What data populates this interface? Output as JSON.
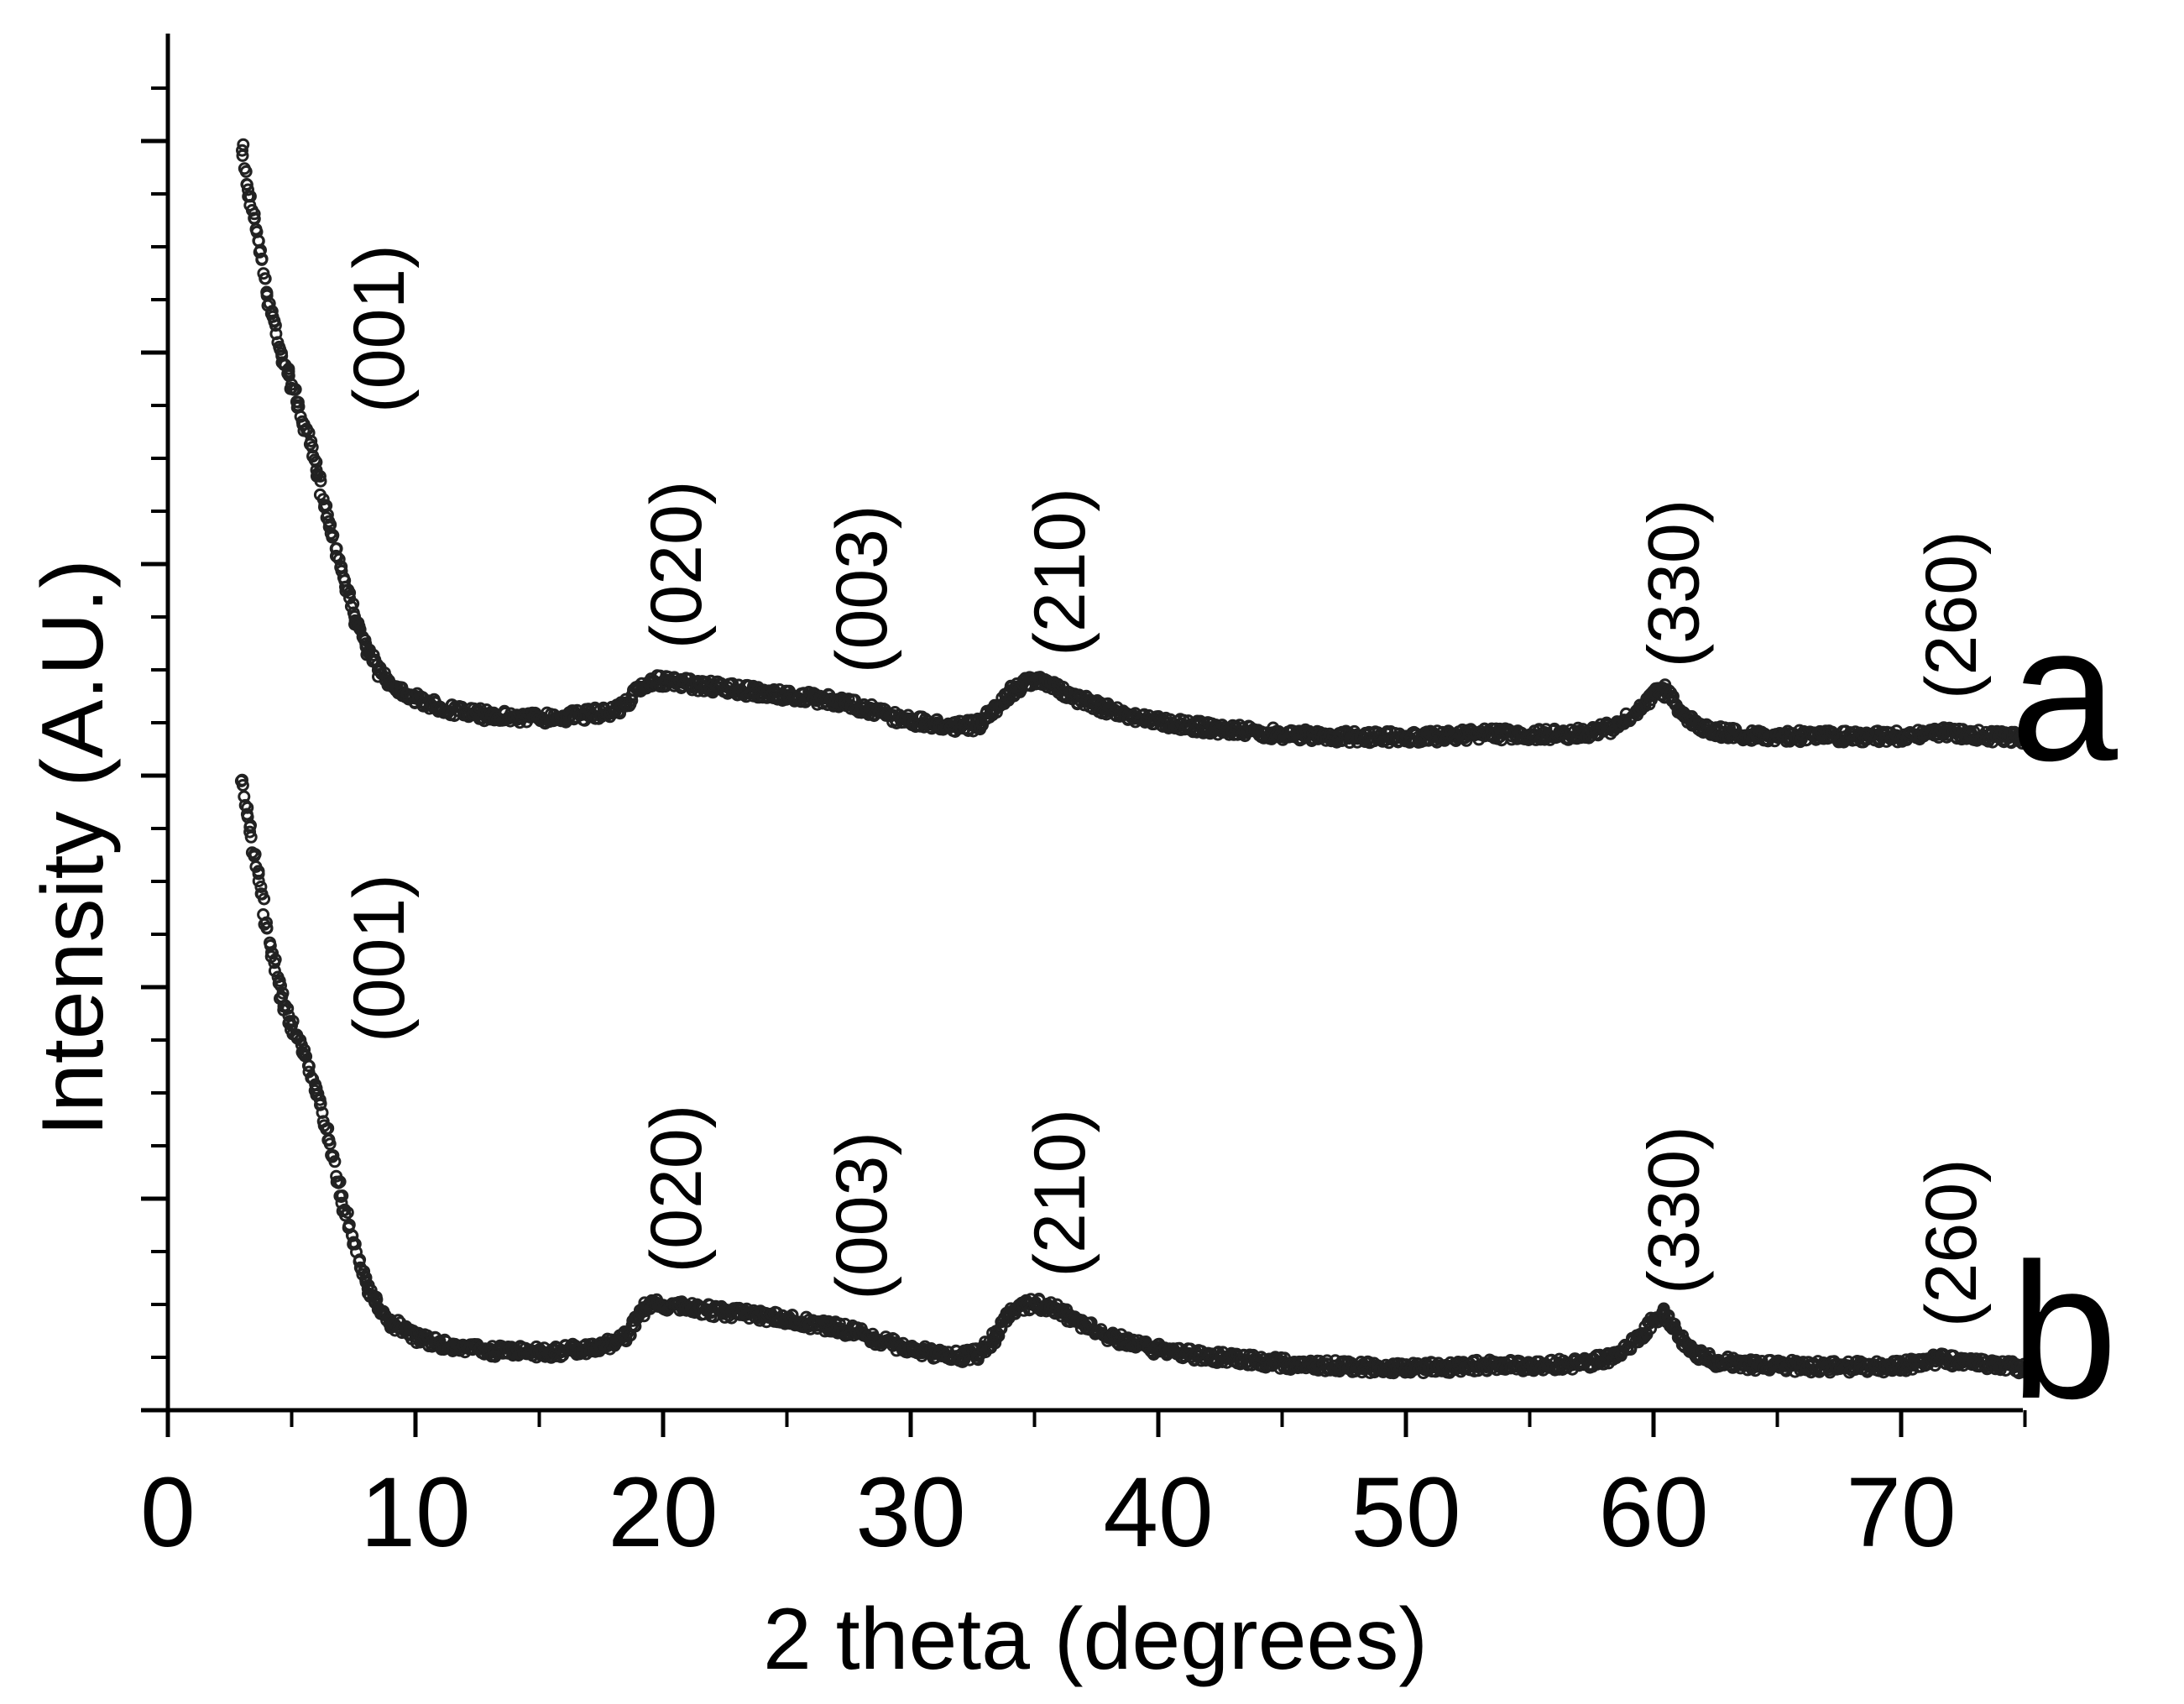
{
  "chart_data": {
    "type": "scatter",
    "xlabel": "2 theta (degrees)",
    "ylabel": "Intensity (A.U.)",
    "xlim": [
      0,
      75
    ],
    "x_ticks": [
      "0",
      "10",
      "20",
      "30",
      "40",
      "50",
      "60",
      "70"
    ],
    "x_tick_values": [
      0,
      10,
      20,
      30,
      40,
      50,
      60,
      70
    ],
    "y_tick_labels_shown": false,
    "grid": false,
    "marker": "open-circle",
    "series": [
      {
        "name": "a",
        "x": [
          3.0,
          3.2,
          3.5,
          3.8,
          4.0,
          4.3,
          4.6,
          5.0,
          5.5,
          6.0,
          6.5,
          7.0,
          7.5,
          8.0,
          8.5,
          9.0,
          10,
          11,
          12,
          13,
          14,
          15,
          16,
          17,
          18,
          18.5,
          19.0,
          19.5,
          20,
          21,
          22,
          23,
          24,
          25,
          26,
          27,
          28,
          29,
          30,
          31,
          32,
          32.8,
          33.4,
          34.0,
          34.5,
          35.0,
          35.5,
          36,
          37,
          38,
          39,
          40,
          42,
          44,
          46,
          48,
          50,
          52,
          53,
          55,
          57,
          58.5,
          59.5,
          60.0,
          60.4,
          60.8,
          61.5,
          62.5,
          64,
          66,
          68,
          70,
          71.5,
          72.5,
          74,
          75
        ],
        "y": [
          10.6,
          10.0,
          9.4,
          8.7,
          8.1,
          7.6,
          7.0,
          6.5,
          5.8,
          5.0,
          4.1,
          3.3,
          2.5,
          1.9,
          1.5,
          1.25,
          1.0,
          0.85,
          0.75,
          0.7,
          0.67,
          0.66,
          0.68,
          0.72,
          0.78,
          0.9,
          1.15,
          1.3,
          1.3,
          1.25,
          1.2,
          1.15,
          1.1,
          1.05,
          1.0,
          0.95,
          0.85,
          0.72,
          0.6,
          0.55,
          0.5,
          0.55,
          0.8,
          1.1,
          1.25,
          1.3,
          1.25,
          1.15,
          0.95,
          0.8,
          0.68,
          0.6,
          0.48,
          0.4,
          0.35,
          0.32,
          0.32,
          0.34,
          0.38,
          0.36,
          0.38,
          0.5,
          0.8,
          1.05,
          1.15,
          0.95,
          0.6,
          0.42,
          0.35,
          0.34,
          0.33,
          0.33,
          0.42,
          0.37,
          0.32,
          0.3
        ]
      },
      {
        "name": "b",
        "x": [
          3.0,
          3.2,
          3.5,
          3.8,
          4.0,
          4.3,
          4.6,
          5.0,
          5.5,
          6.0,
          6.5,
          7.0,
          7.5,
          8.0,
          8.5,
          9.0,
          10,
          11,
          12,
          13,
          14,
          15,
          16,
          17,
          18,
          18.5,
          19.0,
          19.5,
          20,
          21,
          22,
          23,
          24,
          25,
          26,
          27,
          28,
          29,
          30,
          31,
          32,
          32.8,
          33.4,
          34.0,
          34.5,
          35.0,
          35.5,
          36,
          37,
          38,
          39,
          40,
          42,
          44,
          46,
          48,
          50,
          52,
          53,
          55,
          57,
          58.5,
          59.5,
          60.0,
          60.4,
          60.8,
          61.5,
          62.5,
          64,
          66,
          68,
          70,
          71.5,
          72.5,
          74,
          75
        ],
        "y": [
          10.6,
          10.0,
          9.3,
          8.6,
          8.0,
          7.4,
          6.8,
          6.3,
          5.8,
          5.2,
          4.3,
          3.3,
          2.5,
          1.8,
          1.35,
          1.1,
          0.85,
          0.72,
          0.65,
          0.6,
          0.58,
          0.57,
          0.6,
          0.65,
          0.72,
          0.85,
          1.2,
          1.45,
          1.4,
          1.35,
          1.3,
          1.25,
          1.2,
          1.15,
          1.08,
          1.0,
          0.9,
          0.75,
          0.62,
          0.55,
          0.5,
          0.55,
          0.85,
          1.25,
          1.4,
          1.42,
          1.38,
          1.3,
          1.05,
          0.85,
          0.72,
          0.62,
          0.5,
          0.42,
          0.35,
          0.32,
          0.3,
          0.32,
          0.35,
          0.34,
          0.36,
          0.5,
          0.85,
          1.15,
          1.25,
          1.0,
          0.6,
          0.42,
          0.35,
          0.33,
          0.32,
          0.33,
          0.45,
          0.4,
          0.33,
          0.3
        ]
      }
    ],
    "trace_labels": [
      "a",
      "b"
    ],
    "peak_labels": [
      {
        "series": "a",
        "label": "(001)",
        "x": 8.5
      },
      {
        "series": "a",
        "label": "(020)",
        "x": 20.5
      },
      {
        "series": "a",
        "label": "(003)",
        "x": 28.0
      },
      {
        "series": "a",
        "label": "(210)",
        "x": 36.0
      },
      {
        "series": "a",
        "label": "(330)",
        "x": 60.8
      },
      {
        "series": "a",
        "label": "(260)",
        "x": 72.0
      },
      {
        "series": "b",
        "label": "(001)",
        "x": 8.5
      },
      {
        "series": "b",
        "label": "(020)",
        "x": 20.5
      },
      {
        "series": "b",
        "label": "(003)",
        "x": 28.0
      },
      {
        "series": "b",
        "label": "(210)",
        "x": 36.0
      },
      {
        "series": "b",
        "label": "(330)",
        "x": 60.8
      },
      {
        "series": "b",
        "label": "(260)",
        "x": 72.0
      }
    ]
  }
}
